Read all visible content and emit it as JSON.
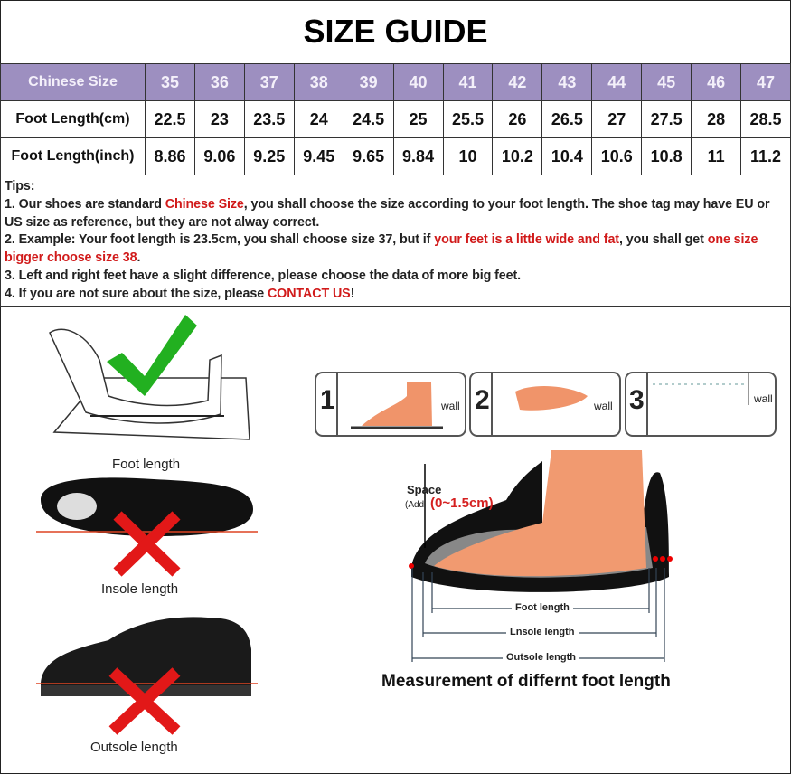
{
  "title": "SIZE GUIDE",
  "table": {
    "header_label": "Chinese Size",
    "sizes": [
      "35",
      "36",
      "37",
      "38",
      "39",
      "40",
      "41",
      "42",
      "43",
      "44",
      "45",
      "46",
      "47"
    ],
    "rows": [
      {
        "label": "Foot Length(cm)",
        "values": [
          "22.5",
          "23",
          "23.5",
          "24",
          "24.5",
          "25",
          "25.5",
          "26",
          "26.5",
          "27",
          "27.5",
          "28",
          "28.5"
        ]
      },
      {
        "label": "Foot Length(inch)",
        "values": [
          "8.86",
          "9.06",
          "9.25",
          "9.45",
          "9.65",
          "9.84",
          "10",
          "10.2",
          "10.4",
          "10.6",
          "10.8",
          "11",
          "11.2"
        ]
      }
    ],
    "header_color": "#9d8fc0"
  },
  "tips": {
    "heading": "Tips:",
    "t1a": "1. Our shoes are standard ",
    "t1b": "Chinese Size",
    "t1c": ", you shall choose the size according to your foot length. The shoe tag may have EU or US size as reference, but they are not alway correct.",
    "t2a": "2. Example: Your foot length is 23.5cm, you shall choose size 37, but if ",
    "t2b": "your feet is a little wide and fat",
    "t2c": ", you shall get ",
    "t2d": "one size bigger choose size 38",
    "t2e": ".",
    "t3": "3. Left and right feet have a slight difference, please choose the data of more big feet.",
    "t4a": "4. If you are not sure about the size, please ",
    "t4b": "CONTACT US",
    "t4c": "!",
    "highlight_color": "#d11a1a"
  },
  "left": {
    "foot_length": "Foot length",
    "insole_length": "Insole length",
    "outsole_length": "Outsole length"
  },
  "steps": [
    {
      "num": "1",
      "wall": "wall"
    },
    {
      "num": "2",
      "wall": "wall"
    },
    {
      "num": "3",
      "wall": "wall"
    }
  ],
  "diagram": {
    "space": "Space",
    "add": "(Add",
    "range": "(0~1.5cm)",
    "foot_length": "Foot length",
    "insole_length": "Lnsole length",
    "outsole_length": "Outsole length",
    "caption": "Measurement of differnt foot length"
  }
}
